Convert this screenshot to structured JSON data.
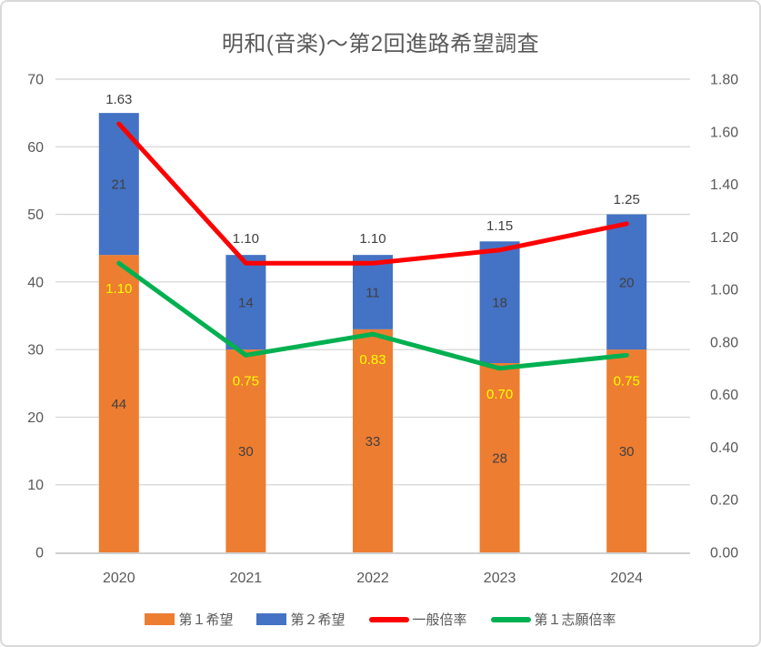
{
  "title": "明和(音楽)〜第2回進路希望調査",
  "chart_data": {
    "type": "bar",
    "subtype": "stacked-column-with-lines",
    "title": "明和(音楽)〜第2回進路希望調査",
    "categories": [
      "2020",
      "2021",
      "2022",
      "2023",
      "2024"
    ],
    "bar_series": [
      {
        "name": "第１希望",
        "color": "#ED7D31",
        "values": [
          44,
          30,
          33,
          28,
          30
        ]
      },
      {
        "name": "第２希望",
        "color": "#4472C4",
        "values": [
          21,
          14,
          11,
          18,
          20
        ]
      }
    ],
    "line_series": [
      {
        "name": "一般倍率",
        "color": "#FF0000",
        "axis": "right",
        "values": [
          1.63,
          1.1,
          1.1,
          1.15,
          1.25
        ],
        "labels": [
          "1.63",
          "1.10",
          "1.10",
          "1.15",
          "1.25"
        ],
        "label_color": "#404040"
      },
      {
        "name": "第１志願倍率",
        "color": "#00B050",
        "axis": "right",
        "values": [
          1.1,
          0.75,
          0.83,
          0.7,
          0.75
        ],
        "labels": [
          "1.10",
          "0.75",
          "0.83",
          "0.70",
          "0.75"
        ],
        "label_color": "#FFFF00"
      }
    ],
    "left_axis": {
      "min": 0,
      "max": 70,
      "ticks": [
        "0",
        "10",
        "20",
        "30",
        "40",
        "50",
        "60",
        "70"
      ]
    },
    "right_axis": {
      "min": 0,
      "max": 1.8,
      "ticks": [
        "0.00",
        "0.20",
        "0.40",
        "0.60",
        "0.80",
        "1.00",
        "1.20",
        "1.40",
        "1.60",
        "1.80"
      ]
    },
    "grid": true,
    "legend_position": "bottom"
  },
  "colors": {
    "grid": "#D9D9D9",
    "axis_line": "#BFBFBF",
    "axis_text": "#595959",
    "bar_label": "#404040",
    "title_text": "#595959",
    "frame_border": "#D9D9D9",
    "background": "#FFFFFF"
  }
}
